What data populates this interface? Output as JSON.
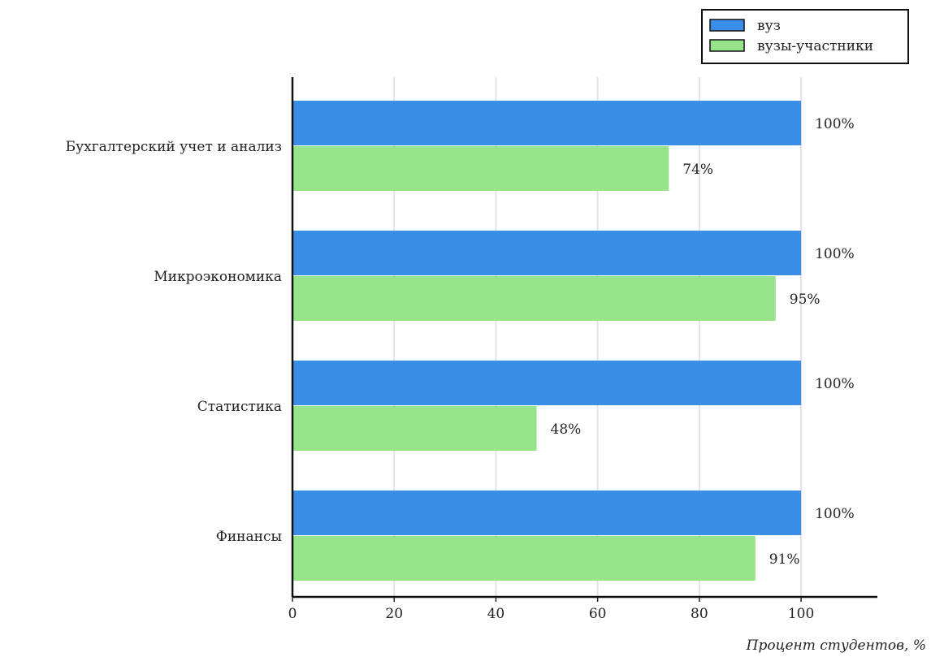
{
  "chart_data": {
    "type": "bar",
    "orientation": "horizontal",
    "categories": [
      "Бухгалтерский учет и анализ",
      "Микроэкономика",
      "Статистика",
      "Финансы"
    ],
    "series": [
      {
        "name": "вуз",
        "color": "#3a8ee8",
        "values": [
          100,
          100,
          100,
          100
        ],
        "labels": [
          "100%",
          "100%",
          "100%",
          "100%"
        ]
      },
      {
        "name": "вузы-участники",
        "color": "#97e38a",
        "values": [
          74,
          95,
          48,
          91
        ],
        "labels": [
          "74%",
          "95%",
          "48%",
          "91%"
        ]
      }
    ],
    "xlabel": "Процент студентов, %",
    "ylabel": "",
    "xlim": [
      0,
      115
    ],
    "xticks": [
      "0",
      "20",
      "40",
      "60",
      "80",
      "100"
    ],
    "grid": "vertical",
    "legend": "top-right"
  }
}
